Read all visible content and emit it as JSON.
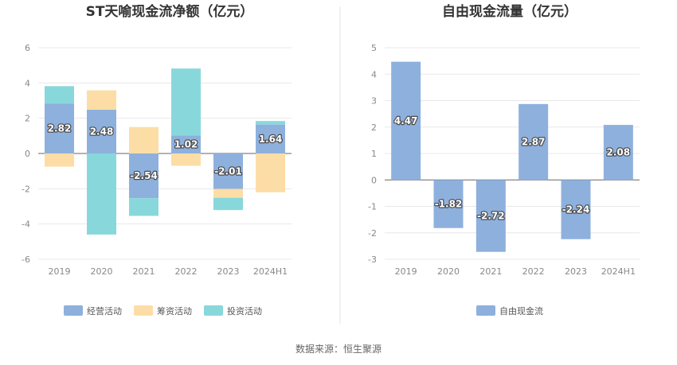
{
  "source_label": "数据来源：恒生聚源",
  "chart_data": [
    {
      "type": "bar",
      "stacked": true,
      "title": "ST天喻现金流净额（亿元）",
      "categories": [
        "2019",
        "2020",
        "2021",
        "2022",
        "2023",
        "2024H1"
      ],
      "ylim": [
        -6,
        6
      ],
      "yticks": [
        -6,
        -4,
        -2,
        0,
        2,
        4,
        6
      ],
      "grid": true,
      "legend_position": "bottom",
      "series": [
        {
          "name": "经营活动",
          "color": "#8eb0dd",
          "values": [
            2.82,
            2.48,
            -2.54,
            1.02,
            -2.01,
            1.64
          ]
        },
        {
          "name": "筹资活动",
          "color": "#fddda6",
          "values": [
            -0.75,
            1.1,
            1.5,
            -0.7,
            -0.5,
            -2.2
          ]
        },
        {
          "name": "投资活动",
          "color": "#88d8db",
          "values": [
            1.0,
            -4.6,
            -1.0,
            3.8,
            -0.7,
            0.2
          ]
        }
      ],
      "data_labels": [
        "2.82",
        "2.48",
        "-2.54",
        "1.02",
        "-2.01",
        "1.64"
      ]
    },
    {
      "type": "bar",
      "title": "自由现金流量（亿元）",
      "categories": [
        "2019",
        "2020",
        "2021",
        "2022",
        "2023",
        "2024H1"
      ],
      "ylim": [
        -3,
        5
      ],
      "yticks": [
        -3,
        -2,
        -1,
        0,
        1,
        2,
        3,
        4,
        5
      ],
      "grid": true,
      "legend_position": "bottom",
      "series": [
        {
          "name": "自由现金流",
          "color": "#8eb0dd",
          "values": [
            4.47,
            -1.82,
            -2.72,
            2.87,
            -2.24,
            2.08
          ]
        }
      ],
      "data_labels": [
        "4.47",
        "-1.82",
        "-2.72",
        "2.87",
        "-2.24",
        "2.08"
      ]
    }
  ]
}
